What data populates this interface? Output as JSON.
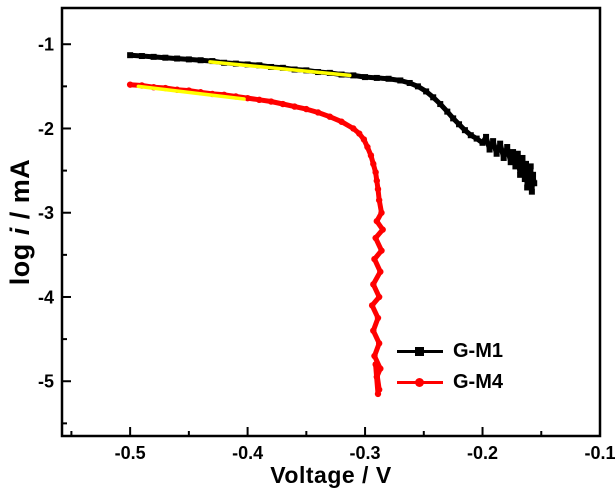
{
  "chart_data": {
    "type": "line",
    "title": "",
    "xlabel": "Voltage / V",
    "ylabel": "log i / mA",
    "ylabel_parts": [
      "log ",
      "i",
      " / mA"
    ],
    "xlim": [
      -0.558,
      -0.1
    ],
    "ylim": [
      -5.65,
      -0.57
    ],
    "grid": false,
    "legend_position": "lower-right",
    "x_ticks": [
      {
        "v": -0.5,
        "label": "-0.5"
      },
      {
        "v": -0.4,
        "label": "-0.4"
      },
      {
        "v": -0.3,
        "label": "-0.3"
      },
      {
        "v": -0.2,
        "label": "-0.2"
      },
      {
        "v": -0.1,
        "label": "-0.1"
      }
    ],
    "x_minor_ticks": [
      -0.55,
      -0.45,
      -0.35,
      -0.25,
      -0.15
    ],
    "y_ticks": [
      {
        "v": -1,
        "label": "-1"
      },
      {
        "v": -2,
        "label": "-2"
      },
      {
        "v": -3,
        "label": "-3"
      },
      {
        "v": -4,
        "label": "-4"
      },
      {
        "v": -5,
        "label": "-5"
      }
    ],
    "y_minor_ticks": [
      -1.5,
      -2.5,
      -3.5,
      -4.5,
      -5.5
    ],
    "series": [
      {
        "name": "G-M1",
        "color": "#000000",
        "marker": "square",
        "points": [
          [
            -0.5,
            -1.13
          ],
          [
            -0.49,
            -1.14
          ],
          [
            -0.48,
            -1.15
          ],
          [
            -0.47,
            -1.16
          ],
          [
            -0.46,
            -1.17
          ],
          [
            -0.45,
            -1.18
          ],
          [
            -0.44,
            -1.19
          ],
          [
            -0.43,
            -1.2
          ],
          [
            -0.42,
            -1.22
          ],
          [
            -0.41,
            -1.23
          ],
          [
            -0.4,
            -1.24
          ],
          [
            -0.39,
            -1.25
          ],
          [
            -0.38,
            -1.27
          ],
          [
            -0.37,
            -1.28
          ],
          [
            -0.36,
            -1.3
          ],
          [
            -0.35,
            -1.31
          ],
          [
            -0.34,
            -1.33
          ],
          [
            -0.33,
            -1.34
          ],
          [
            -0.32,
            -1.36
          ],
          [
            -0.31,
            -1.37
          ],
          [
            -0.3,
            -1.39
          ],
          [
            -0.29,
            -1.4
          ],
          [
            -0.28,
            -1.41
          ],
          [
            -0.27,
            -1.43
          ],
          [
            -0.262,
            -1.46
          ],
          [
            -0.255,
            -1.5
          ],
          [
            -0.248,
            -1.56
          ],
          [
            -0.242,
            -1.63
          ],
          [
            -0.236,
            -1.71
          ],
          [
            -0.23,
            -1.8
          ],
          [
            -0.225,
            -1.88
          ],
          [
            -0.22,
            -1.95
          ],
          [
            -0.215,
            -2.02
          ],
          [
            -0.21,
            -2.08
          ],
          [
            -0.205,
            -2.12
          ],
          [
            -0.2,
            -2.17
          ],
          [
            -0.197,
            -2.1
          ],
          [
            -0.194,
            -2.25
          ],
          [
            -0.191,
            -2.15
          ],
          [
            -0.188,
            -2.3
          ],
          [
            -0.185,
            -2.18
          ],
          [
            -0.182,
            -2.35
          ],
          [
            -0.179,
            -2.22
          ],
          [
            -0.176,
            -2.4
          ],
          [
            -0.174,
            -2.28
          ],
          [
            -0.172,
            -2.45
          ],
          [
            -0.17,
            -2.3
          ],
          [
            -0.168,
            -2.55
          ],
          [
            -0.166,
            -2.35
          ],
          [
            -0.164,
            -2.6
          ],
          [
            -0.163,
            -2.42
          ],
          [
            -0.162,
            -2.7
          ],
          [
            -0.161,
            -2.5
          ],
          [
            -0.16,
            -2.62
          ],
          [
            -0.159,
            -2.45
          ],
          [
            -0.158,
            -2.75
          ],
          [
            -0.157,
            -2.55
          ],
          [
            -0.156,
            -2.65
          ]
        ]
      },
      {
        "name": "G-M4",
        "color": "#ff0000",
        "marker": "circle",
        "points": [
          [
            -0.5,
            -1.48
          ],
          [
            -0.49,
            -1.49
          ],
          [
            -0.48,
            -1.51
          ],
          [
            -0.47,
            -1.52
          ],
          [
            -0.46,
            -1.54
          ],
          [
            -0.45,
            -1.55
          ],
          [
            -0.44,
            -1.57
          ],
          [
            -0.43,
            -1.59
          ],
          [
            -0.42,
            -1.6
          ],
          [
            -0.41,
            -1.62
          ],
          [
            -0.4,
            -1.64
          ],
          [
            -0.39,
            -1.66
          ],
          [
            -0.38,
            -1.68
          ],
          [
            -0.37,
            -1.71
          ],
          [
            -0.36,
            -1.74
          ],
          [
            -0.35,
            -1.77
          ],
          [
            -0.34,
            -1.81
          ],
          [
            -0.33,
            -1.86
          ],
          [
            -0.32,
            -1.92
          ],
          [
            -0.31,
            -2.0
          ],
          [
            -0.305,
            -2.06
          ],
          [
            -0.301,
            -2.13
          ],
          [
            -0.298,
            -2.22
          ],
          [
            -0.295,
            -2.32
          ],
          [
            -0.293,
            -2.42
          ],
          [
            -0.291,
            -2.52
          ],
          [
            -0.29,
            -2.62
          ],
          [
            -0.289,
            -2.72
          ],
          [
            -0.288,
            -2.85
          ],
          [
            -0.286,
            -3.0
          ],
          [
            -0.29,
            -3.1
          ],
          [
            -0.285,
            -3.2
          ],
          [
            -0.291,
            -3.3
          ],
          [
            -0.286,
            -3.45
          ],
          [
            -0.292,
            -3.55
          ],
          [
            -0.287,
            -3.7
          ],
          [
            -0.293,
            -3.85
          ],
          [
            -0.288,
            -4.0
          ],
          [
            -0.294,
            -4.1
          ],
          [
            -0.289,
            -4.25
          ],
          [
            -0.293,
            -4.4
          ],
          [
            -0.288,
            -4.55
          ],
          [
            -0.292,
            -4.7
          ],
          [
            -0.287,
            -4.85
          ],
          [
            -0.29,
            -4.95
          ],
          [
            -0.288,
            -5.1
          ],
          [
            -0.291,
            -4.8
          ],
          [
            -0.289,
            -5.15
          ]
        ]
      }
    ],
    "fit_lines": [
      {
        "color": "#ffff00",
        "from": [
          -0.432,
          -1.21
        ],
        "to": [
          -0.313,
          -1.37
        ]
      },
      {
        "color": "#ffff00",
        "from": [
          -0.493,
          -1.5
        ],
        "to": [
          -0.403,
          -1.65
        ]
      }
    ]
  }
}
